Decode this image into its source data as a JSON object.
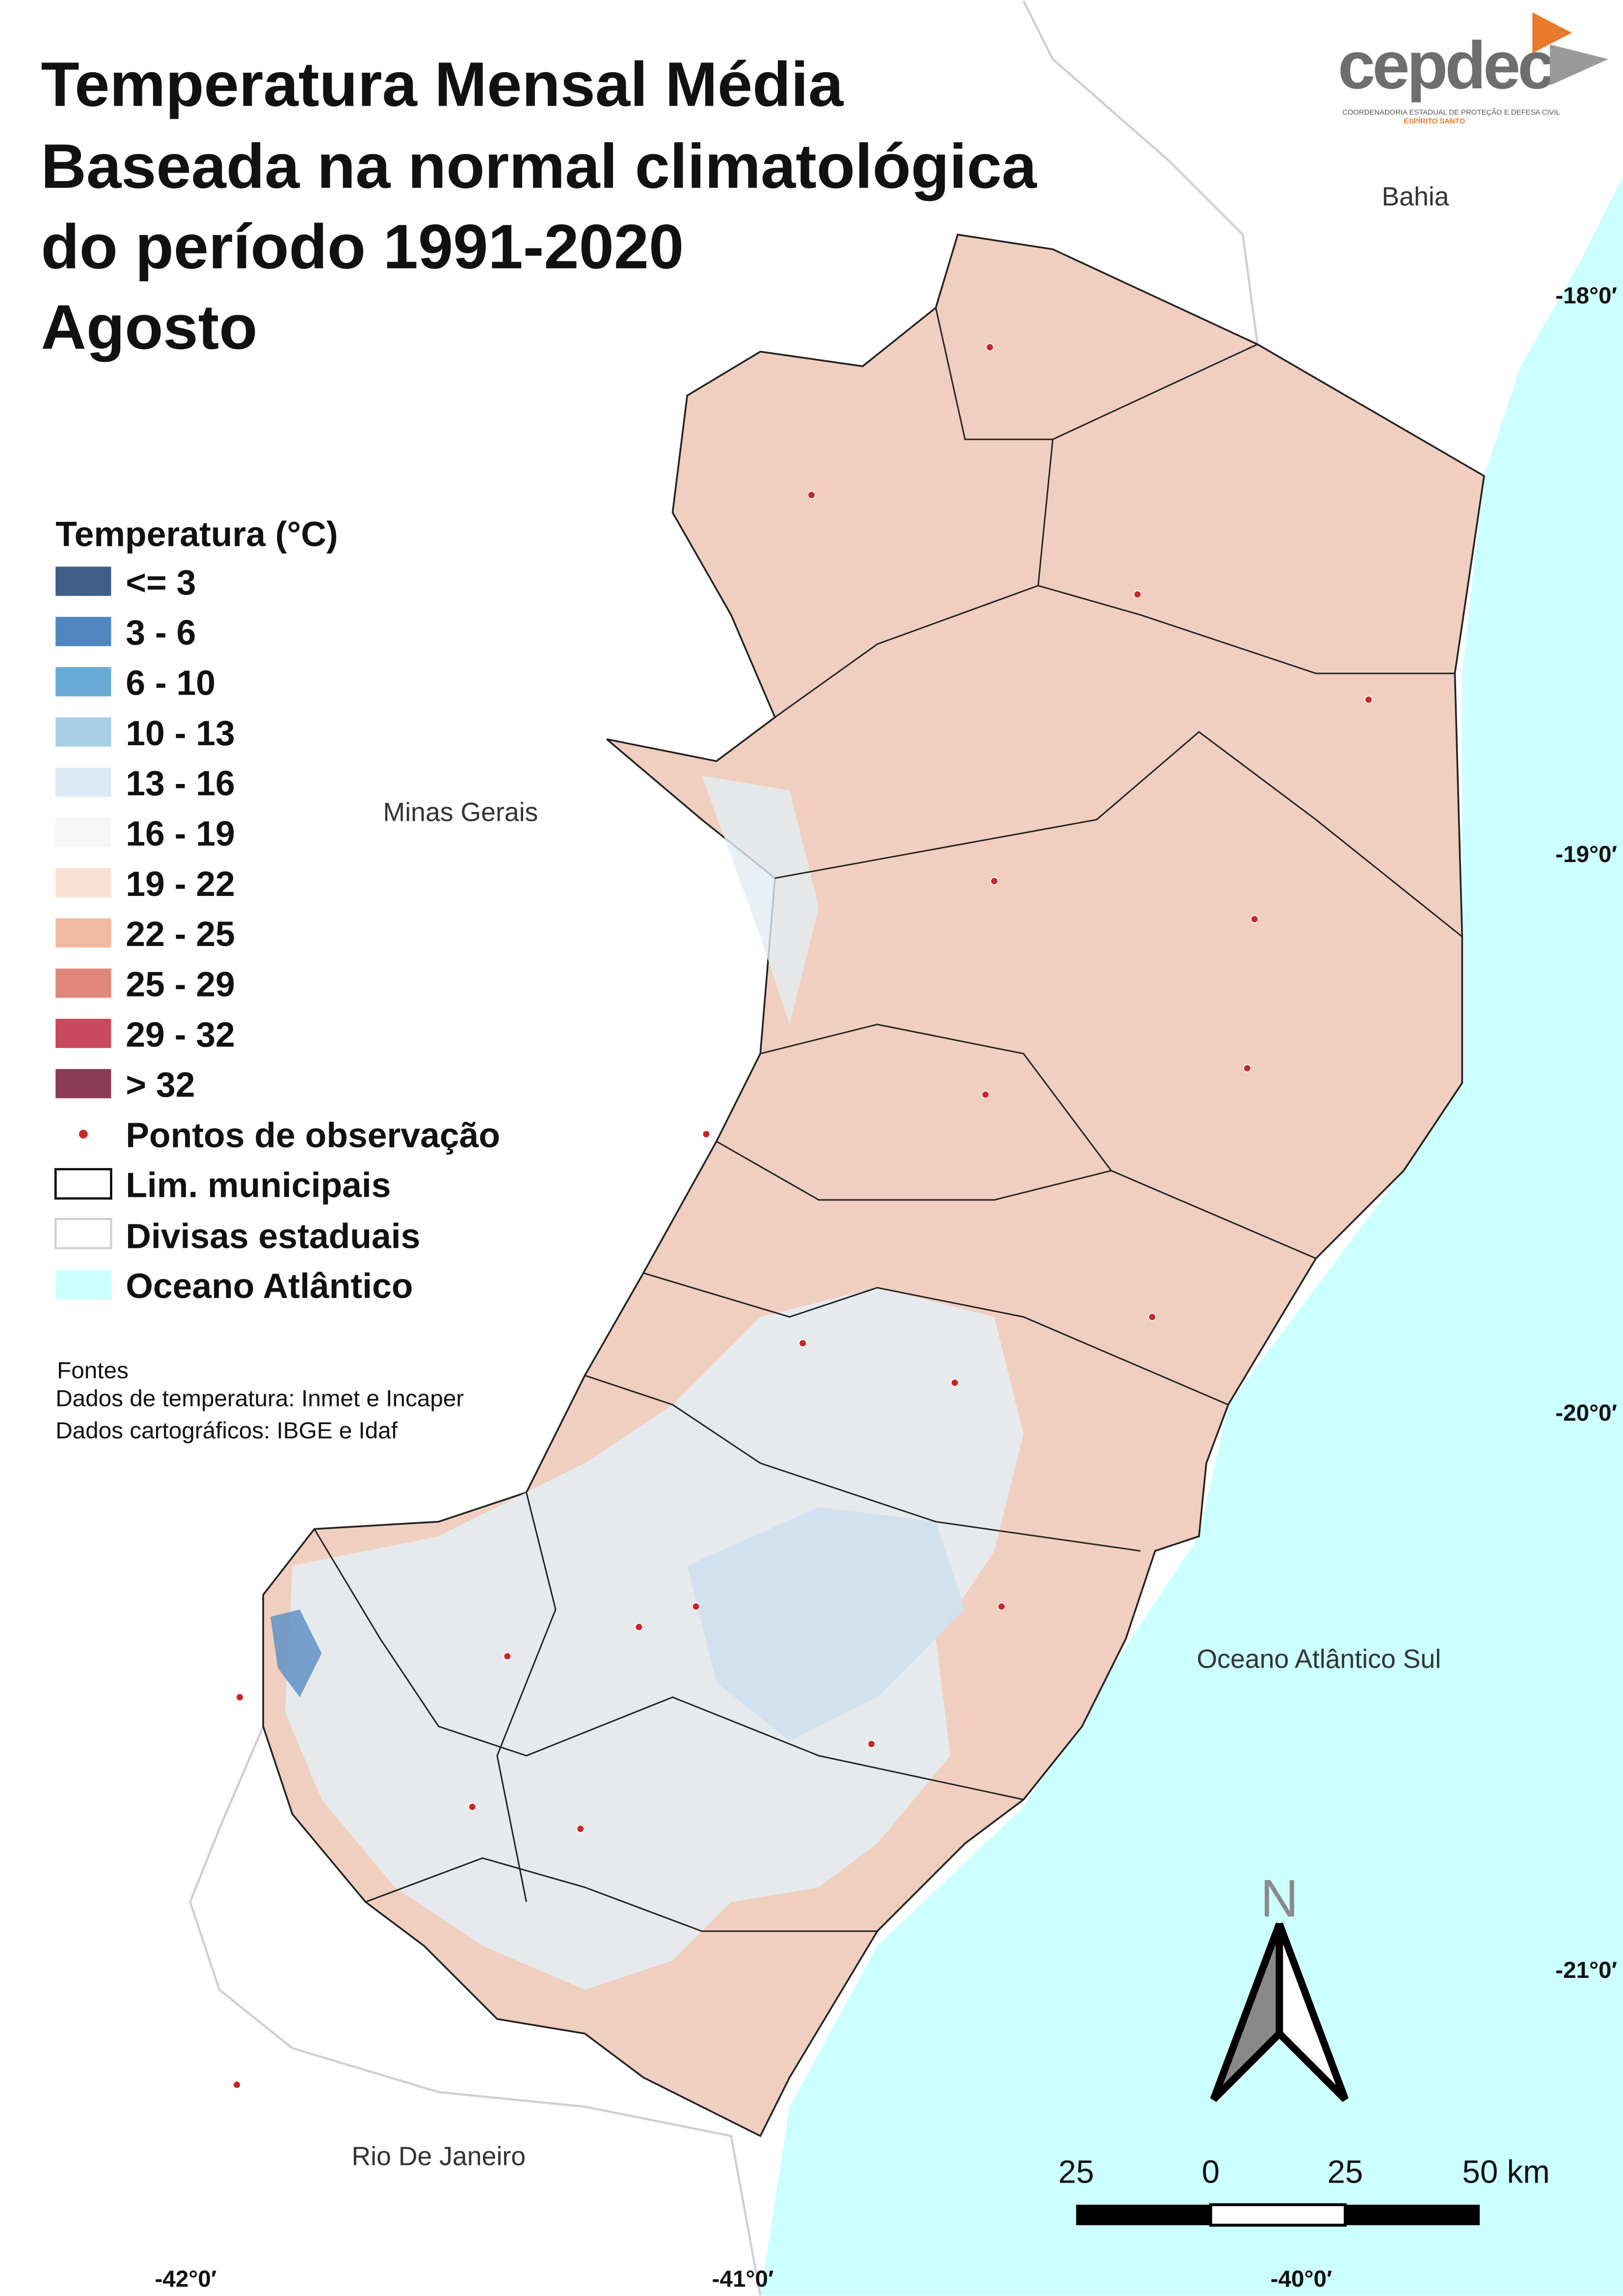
{
  "title": [
    "Temperatura Mensal Média",
    "Baseada na normal climatológica",
    "do período 1991-2020",
    "Agosto"
  ],
  "logo": {
    "name": "cepdec",
    "subtitle": "COORDENADORIA ESTADUAL DE PROTEÇÃO E DEFESA CIVIL",
    "state": "ESPÍRITO SANTO"
  },
  "legend": {
    "title": "Temperatura (°C)",
    "items": [
      {
        "label": "<= 3",
        "color": "#3f5e8a"
      },
      {
        "label": "3 - 6",
        "color": "#4f86c0"
      },
      {
        "label": "6 - 10",
        "color": "#6aaad6"
      },
      {
        "label": "10 - 13",
        "color": "#a9cfe7"
      },
      {
        "label": "13 - 16",
        "color": "#dceaf3"
      },
      {
        "label": "16 - 19",
        "color": "#f6f6f6"
      },
      {
        "label": "19 - 22",
        "color": "#fbe1d3"
      },
      {
        "label": "22 - 25",
        "color": "#f2b9a2"
      },
      {
        "label": "25 - 29",
        "color": "#e0857a"
      },
      {
        "label": "29 - 32",
        "color": "#c94a5f"
      },
      {
        "label": "> 32",
        "color": "#8a3b56"
      }
    ],
    "others": [
      "Pontos de observação",
      "Lim. municipais",
      "Divisas estaduais",
      "Oceano Atlântico"
    ]
  },
  "sources": [
    "Fontes",
    "Dados de temperatura: Inmet e Incaper",
    "Dados cartográficos: IBGE e Idaf"
  ],
  "places": {
    "bahia": "Bahia",
    "minas": "Minas Gerais",
    "ocean": "Oceano Atlântico Sul",
    "rio": "Rio De Janeiro"
  },
  "graticule": {
    "lat": [
      "-18°0′",
      "-19°0′",
      "-20°0′",
      "-21°0′"
    ],
    "lon": [
      "-42°0′",
      "-41°0′",
      "-40°0′"
    ]
  },
  "scale_bar": [
    "25",
    "0",
    "25",
    "50 km"
  ],
  "north": "N"
}
